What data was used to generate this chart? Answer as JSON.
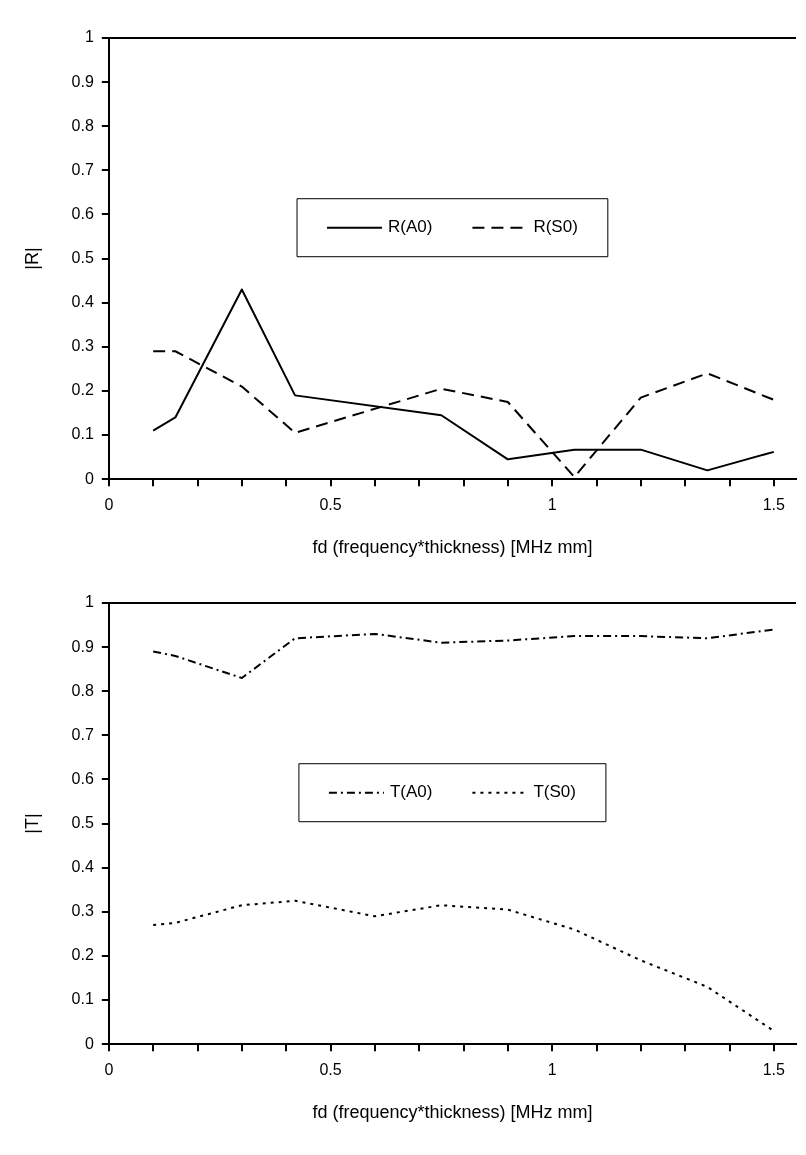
{
  "chart_data": [
    {
      "type": "line",
      "xlabel": "fd (frequency*thickness) [MHz mm]",
      "ylabel": "|R|",
      "xlim": [
        0,
        1.55
      ],
      "ylim": [
        0,
        1
      ],
      "xticks": [
        0,
        {
          "value": 0.1,
          "label": null
        },
        {
          "value": 0.2,
          "label": null
        },
        {
          "value": 0.3,
          "label": null
        },
        {
          "value": 0.4,
          "label": null
        },
        0.5,
        {
          "value": 0.6,
          "label": null
        },
        {
          "value": 0.7,
          "label": null
        },
        {
          "value": 0.8,
          "label": null
        },
        {
          "value": 0.9,
          "label": null
        },
        1,
        {
          "value": 1.1,
          "label": null
        },
        {
          "value": 1.2,
          "label": null
        },
        {
          "value": 1.3,
          "label": null
        },
        {
          "value": 1.4,
          "label": null
        },
        1.5
      ],
      "yticks": [
        0,
        0.1,
        0.2,
        0.3,
        0.4,
        0.5,
        0.6,
        0.7,
        0.8,
        0.9,
        1
      ],
      "grid": false,
      "legend": "center",
      "marker": "none",
      "series": [
        {
          "name": "R(A0)",
          "color": "#000000",
          "line_style": "solid",
          "x": [
            0.1,
            0.15,
            0.3,
            0.42,
            0.75,
            0.9,
            1.05,
            1.2,
            1.35,
            1.5
          ],
          "values": [
            0.11,
            0.14,
            0.43,
            0.19,
            0.145,
            0.045,
            0.067,
            0.067,
            0.02,
            0.062
          ]
        },
        {
          "name": "R(S0)",
          "color": "#000000",
          "line_style": "dashed",
          "x": [
            0.1,
            0.15,
            0.3,
            0.42,
            0.75,
            0.9,
            1.05,
            1.2,
            1.35,
            1.5
          ],
          "values": [
            0.29,
            0.29,
            0.21,
            0.105,
            0.205,
            0.175,
            0.005,
            0.185,
            0.24,
            0.18
          ]
        }
      ]
    },
    {
      "type": "line",
      "xlabel": "fd (frequency*thickness) [MHz mm]",
      "ylabel": "|T|",
      "xlim": [
        0,
        1.55
      ],
      "ylim": [
        0,
        1
      ],
      "xticks": [
        0,
        {
          "value": 0.1,
          "label": null
        },
        {
          "value": 0.2,
          "label": null
        },
        {
          "value": 0.3,
          "label": null
        },
        {
          "value": 0.4,
          "label": null
        },
        0.5,
        {
          "value": 0.6,
          "label": null
        },
        {
          "value": 0.7,
          "label": null
        },
        {
          "value": 0.8,
          "label": null
        },
        {
          "value": 0.9,
          "label": null
        },
        1,
        {
          "value": 1.1,
          "label": null
        },
        {
          "value": 1.2,
          "label": null
        },
        {
          "value": 1.3,
          "label": null
        },
        {
          "value": 1.4,
          "label": null
        },
        1.5
      ],
      "yticks": [
        0,
        0.1,
        0.2,
        0.3,
        0.4,
        0.5,
        0.6,
        0.7,
        0.8,
        0.9,
        1
      ],
      "grid": false,
      "legend": "center",
      "marker": "none",
      "series": [
        {
          "name": "T(A0)",
          "color": "#000000",
          "line_style": "dashdot",
          "x": [
            0.1,
            0.15,
            0.3,
            0.42,
            0.6,
            0.75,
            0.9,
            1.05,
            1.2,
            1.35,
            1.5
          ],
          "values": [
            0.89,
            0.88,
            0.83,
            0.92,
            0.93,
            0.91,
            0.915,
            0.925,
            0.925,
            0.92,
            0.94
          ]
        },
        {
          "name": "T(S0)",
          "color": "#000000",
          "line_style": "dotted",
          "x": [
            0.1,
            0.15,
            0.3,
            0.42,
            0.6,
            0.75,
            0.9,
            1.05,
            1.2,
            1.35,
            1.5
          ],
          "values": [
            0.27,
            0.275,
            0.315,
            0.325,
            0.29,
            0.315,
            0.305,
            0.26,
            0.19,
            0.13,
            0.03
          ]
        }
      ]
    }
  ]
}
